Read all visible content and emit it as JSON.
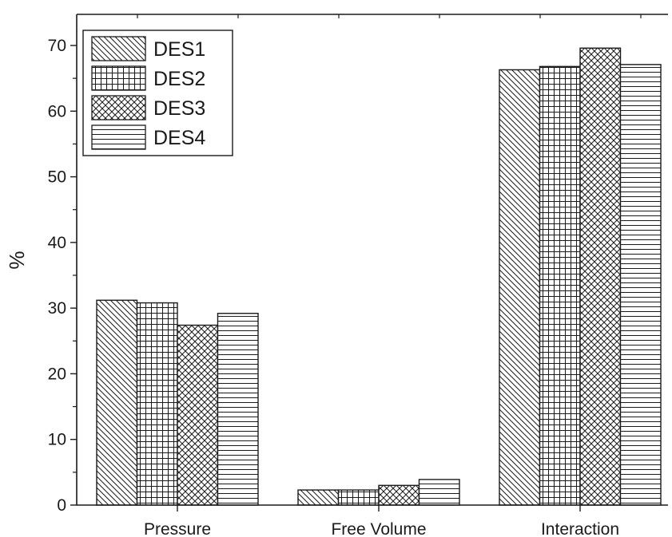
{
  "chart_data": {
    "type": "bar",
    "categories": [
      "Pressure",
      "Free Volume",
      "Interaction"
    ],
    "series": [
      {
        "name": "DES1",
        "values": [
          31.2,
          2.3,
          66.3
        ],
        "pattern": "diag-down"
      },
      {
        "name": "DES2",
        "values": [
          30.8,
          2.3,
          66.8
        ],
        "pattern": "grid"
      },
      {
        "name": "DES3",
        "values": [
          27.4,
          3.0,
          69.6
        ],
        "pattern": "crosshatch"
      },
      {
        "name": "DES4",
        "values": [
          29.2,
          3.9,
          67.1
        ],
        "pattern": "horizontal"
      }
    ],
    "title": "",
    "xlabel": "",
    "ylabel": "%",
    "ylim": [
      0,
      70
    ],
    "yticks": [
      "0",
      "10",
      "20",
      "30",
      "40",
      "50",
      "60",
      "70"
    ],
    "legend_position": "top-left",
    "grid": false,
    "colors": {
      "bar_fill": "#ffffff",
      "stroke": "#1a1a1a",
      "background": "#ffffff"
    }
  }
}
